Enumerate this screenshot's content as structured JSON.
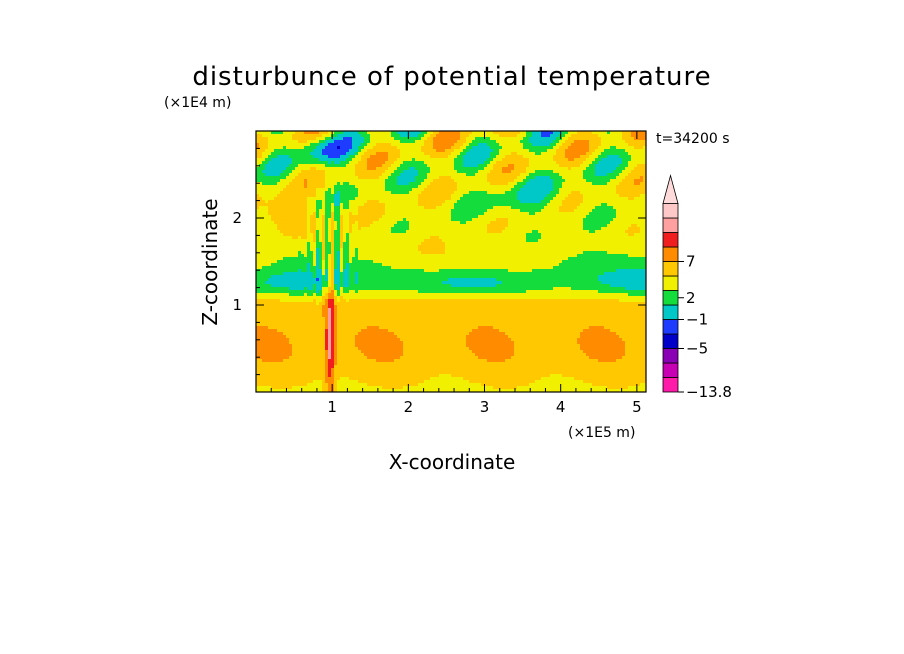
{
  "chart_data": {
    "type": "heatmap",
    "title": "disturbunce of potential temperature",
    "time_label": "t=34200 s",
    "xlabel": "X-coordinate",
    "ylabel": "Z-coordinate",
    "x_multiplier": "(×1E5 m)",
    "y_multiplier": "(×1E4 m)",
    "xlim": [
      0,
      5.12
    ],
    "ylim": [
      0,
      3.0
    ],
    "x_ticks": [
      1,
      2,
      3,
      4,
      5
    ],
    "y_ticks": [
      1,
      2
    ],
    "x_tick_labels": [
      "1",
      "2",
      "3",
      "4",
      "5"
    ],
    "y_tick_labels": [
      "1",
      "2"
    ],
    "grid": false,
    "colorbar": {
      "labels": [
        {
          "value": "7",
          "level": 9
        },
        {
          "value": "2",
          "level": 6.5
        },
        {
          "value": "−1",
          "level": 5
        },
        {
          "value": "−5",
          "level": 3
        },
        {
          "value": "−13.8",
          "level": 0
        }
      ],
      "colors": [
        "#ff1aaa",
        "#c800b4",
        "#8a00b4",
        "#0000c8",
        "#1e3cff",
        "#00c8c8",
        "#14dc3c",
        "#f0f000",
        "#ffc800",
        "#ff8c00",
        "#f01e1e",
        "#ffa0a0",
        "#ffc8c8"
      ],
      "extend": "top"
    }
  }
}
